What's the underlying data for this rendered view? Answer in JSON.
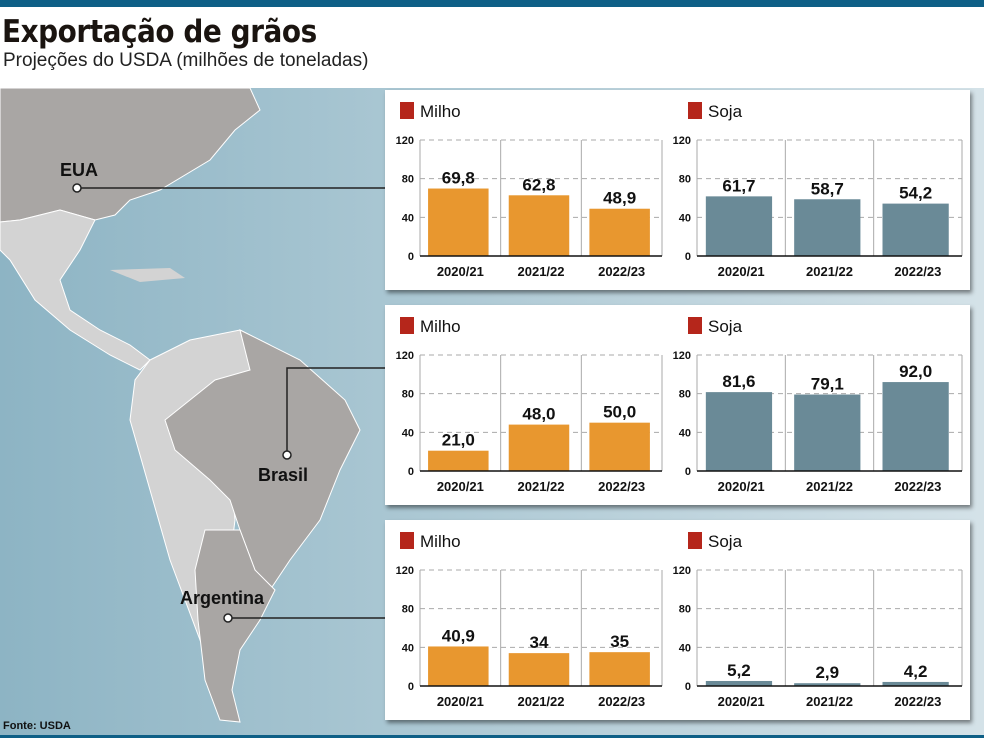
{
  "title": "Exportação de grãos",
  "subtitle": "Projeções do USDA (milhões de toneladas)",
  "source": "Fonte: USDA",
  "colors": {
    "milho": "#e8972f",
    "soja": "#6a8a97",
    "legend_swatch": "#b5261b",
    "ocean": "#8fb6c6",
    "land": "#a9a6a4",
    "land_other": "#d3d3d3"
  },
  "map_labels": [
    "EUA",
    "Brasil",
    "Argentina"
  ],
  "chart_data": [
    {
      "type": "bar",
      "country": "EUA",
      "series": "Milho",
      "categories": [
        "2020/21",
        "2021/22",
        "2022/23"
      ],
      "values": [
        69.8,
        62.8,
        48.9
      ],
      "labels": [
        "69,8",
        "62,8",
        "48,9"
      ],
      "yticks": [
        "0",
        "40",
        "80",
        "120"
      ],
      "ylim": [
        0,
        120
      ],
      "grid": true
    },
    {
      "type": "bar",
      "country": "EUA",
      "series": "Soja",
      "categories": [
        "2020/21",
        "2021/22",
        "2022/23"
      ],
      "values": [
        61.7,
        58.7,
        54.2
      ],
      "labels": [
        "61,7",
        "58,7",
        "54,2"
      ],
      "yticks": [
        "0",
        "40",
        "80",
        "120"
      ],
      "ylim": [
        0,
        120
      ],
      "grid": true
    },
    {
      "type": "bar",
      "country": "Brasil",
      "series": "Milho",
      "categories": [
        "2020/21",
        "2021/22",
        "2022/23"
      ],
      "values": [
        21.0,
        48.0,
        50.0
      ],
      "labels": [
        "21,0",
        "48,0",
        "50,0"
      ],
      "yticks": [
        "0",
        "40",
        "80",
        "120"
      ],
      "ylim": [
        0,
        120
      ],
      "grid": true
    },
    {
      "type": "bar",
      "country": "Brasil",
      "series": "Soja",
      "categories": [
        "2020/21",
        "2021/22",
        "2022/23"
      ],
      "values": [
        81.6,
        79.1,
        92.0
      ],
      "labels": [
        "81,6",
        "79,1",
        "92,0"
      ],
      "yticks": [
        "0",
        "40",
        "80",
        "120"
      ],
      "ylim": [
        0,
        120
      ],
      "grid": true
    },
    {
      "type": "bar",
      "country": "Argentina",
      "series": "Milho",
      "categories": [
        "2020/21",
        "2021/22",
        "2022/23"
      ],
      "values": [
        40.9,
        34,
        35
      ],
      "labels": [
        "40,9",
        "34",
        "35"
      ],
      "yticks": [
        "0",
        "40",
        "80",
        "120"
      ],
      "ylim": [
        0,
        120
      ],
      "grid": true
    },
    {
      "type": "bar",
      "country": "Argentina",
      "series": "Soja",
      "categories": [
        "2020/21",
        "2021/22",
        "2022/23"
      ],
      "values": [
        5.2,
        2.9,
        4.2
      ],
      "labels": [
        "5,2",
        "2,9",
        "4,2"
      ],
      "yticks": [
        "0",
        "40",
        "80",
        "120"
      ],
      "ylim": [
        0,
        120
      ],
      "grid": true
    }
  ]
}
